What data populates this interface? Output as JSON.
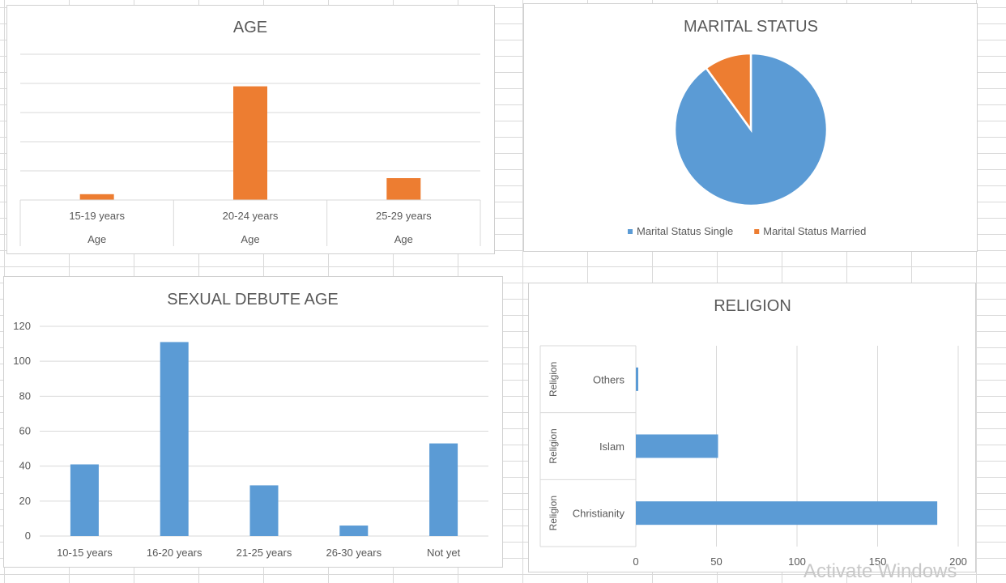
{
  "chart_data": [
    {
      "type": "bar",
      "title": "AGE",
      "categories": [
        "15-19 years",
        "20-24 years",
        "25-29 years"
      ],
      "category_group_label": "Age",
      "values": [
        4,
        78,
        15
      ],
      "ylim": [
        0,
        100
      ],
      "grid": true,
      "gridline_count": 5,
      "y_tick_labels_shown": false,
      "color": "#ED7D31"
    },
    {
      "type": "pie",
      "title": "MARITAL STATUS",
      "labels": [
        "Marital Status Single",
        "Marital Status Married"
      ],
      "values": [
        90,
        10
      ],
      "colors": [
        "#5B9BD5",
        "#ED7D31"
      ],
      "legend": "bottom"
    },
    {
      "type": "bar",
      "title": "SEXUAL DEBUTE AGE",
      "categories": [
        "10-15 years",
        "16-20 years",
        "21-25 years",
        "26-30 years",
        "Not yet"
      ],
      "values": [
        41,
        111,
        29,
        6,
        53
      ],
      "ylim": [
        0,
        120
      ],
      "yticks": [
        "0",
        "20",
        "40",
        "60",
        "80",
        "100",
        "120"
      ],
      "grid": true,
      "color": "#5B9BD5"
    },
    {
      "type": "bar",
      "orientation": "horizontal",
      "title": "RELIGION",
      "categories": [
        "Others",
        "Islam",
        "Christianity"
      ],
      "category_group_label": "Religion",
      "values": [
        1,
        51,
        187
      ],
      "xlim": [
        0,
        200
      ],
      "xticks": [
        "0",
        "50",
        "100",
        "150",
        "200"
      ],
      "grid": true,
      "color": "#5B9BD5"
    }
  ],
  "watermark": "Activate Windows"
}
